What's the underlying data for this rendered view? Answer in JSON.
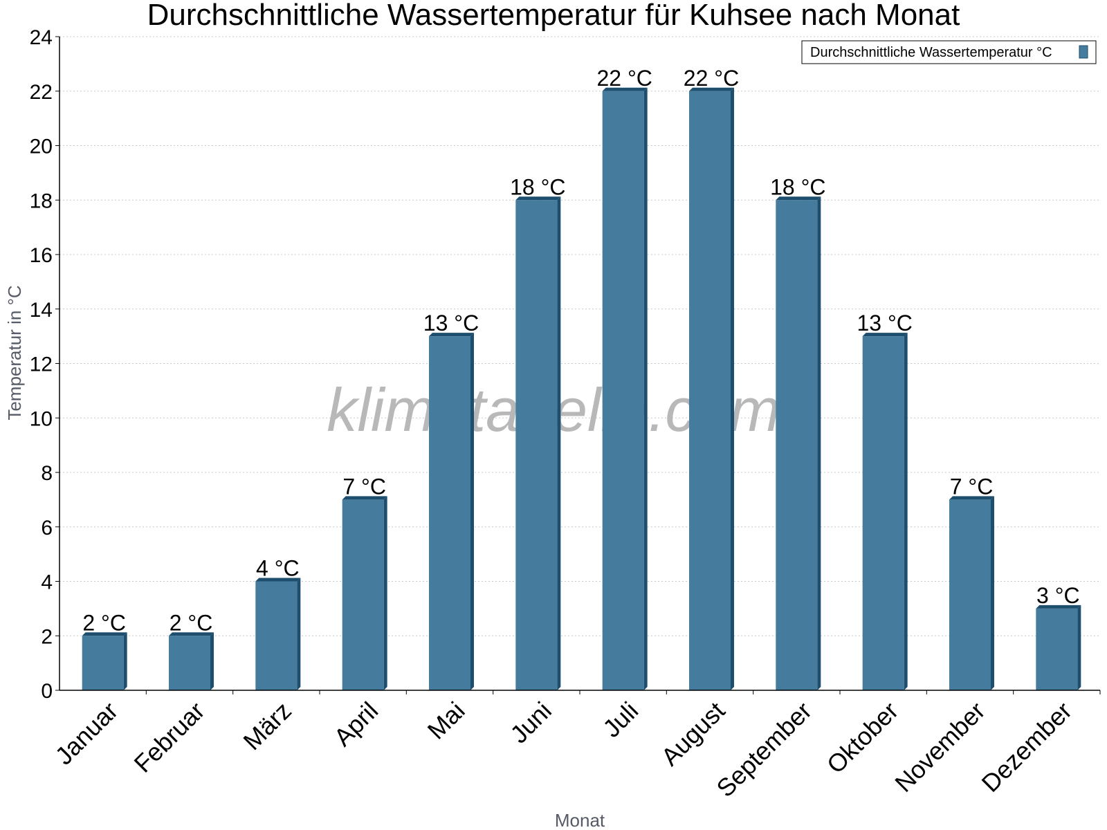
{
  "chart_data": {
    "type": "bar",
    "title": "Durchschnittliche Wassertemperatur für Kuhsee nach Monat",
    "xlabel": "Monat",
    "ylabel": "Temperatur in °C",
    "ylim": [
      0,
      24
    ],
    "yticks": [
      0,
      2,
      4,
      6,
      8,
      10,
      12,
      14,
      16,
      18,
      20,
      22,
      24
    ],
    "grid": true,
    "legend_position": "top-right",
    "categories": [
      "Januar",
      "Februar",
      "März",
      "April",
      "Mai",
      "Juni",
      "Juli",
      "August",
      "September",
      "Oktober",
      "November",
      "Dezember"
    ],
    "series": [
      {
        "name": "Durchschnittliche Wassertemperatur °C",
        "values": [
          2,
          2,
          4,
          7,
          13,
          18,
          22,
          22,
          18,
          13,
          7,
          3
        ],
        "labels": [
          "2 °C",
          "2 °C",
          "4 °C",
          "7 °C",
          "13 °C",
          "18 °C",
          "22 °C",
          "22 °C",
          "18 °C",
          "13 °C",
          "7 °C",
          "3 °C"
        ],
        "color": "#457b9d",
        "edge_color": "#1d4e6e"
      }
    ]
  },
  "watermark": "klimatabelle.com"
}
